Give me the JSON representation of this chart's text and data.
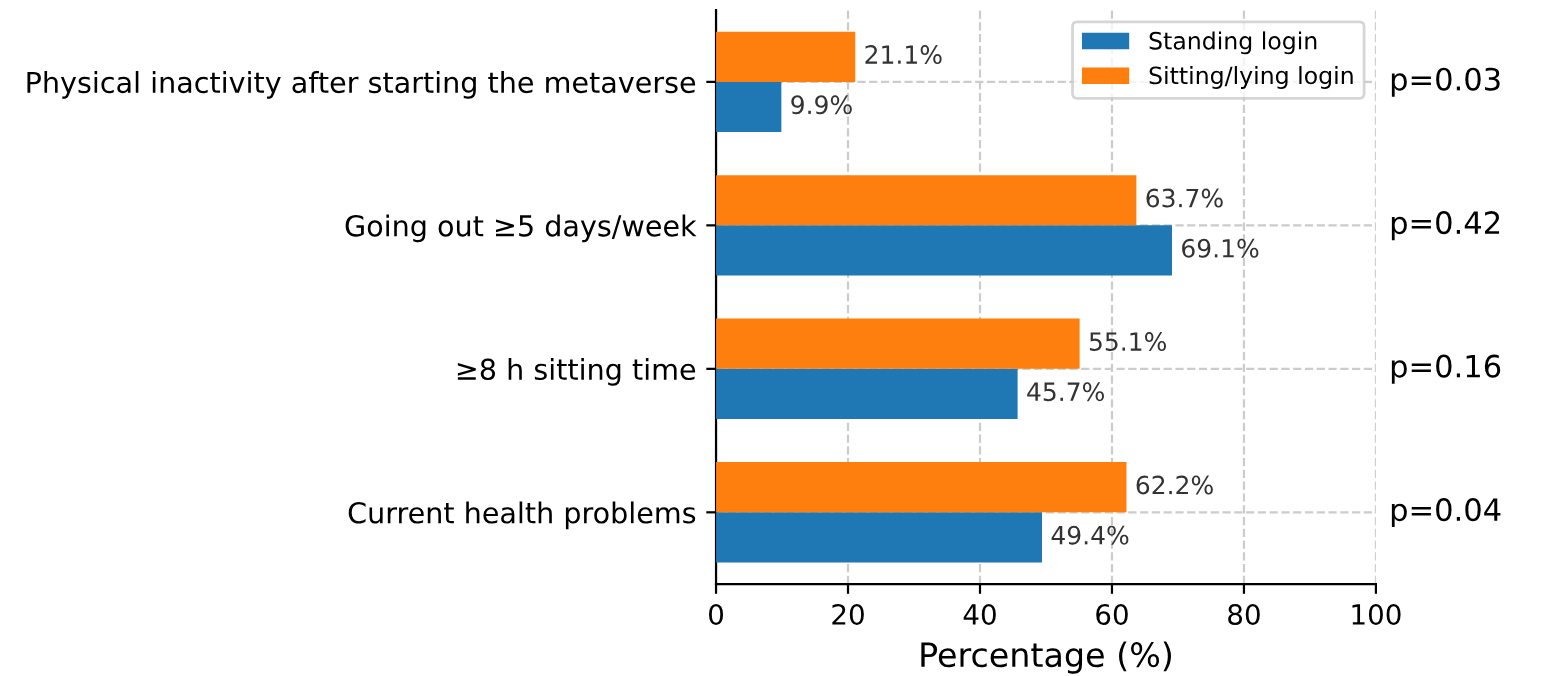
{
  "chart_data": {
    "type": "bar",
    "orientation": "horizontal",
    "xlabel": "Percentage (%)",
    "categories": [
      "Physical inactivity after starting the metaverse",
      "Going out ≥5 days/week",
      "≥8 h sitting time",
      "Current health problems"
    ],
    "series": [
      {
        "name": "Standing login",
        "color": "#1f77b4",
        "values": [
          9.9,
          69.1,
          45.7,
          49.4
        ],
        "value_labels": [
          "9.9%",
          "69.1%",
          "45.7%",
          "49.4%"
        ]
      },
      {
        "name": "Sitting/lying login",
        "color": "#ff7f0e",
        "values": [
          21.1,
          63.7,
          55.1,
          62.2
        ],
        "value_labels": [
          "21.1%",
          "63.7%",
          "55.1%",
          "62.2%"
        ]
      }
    ],
    "xlim": [
      0,
      100
    ],
    "xticks": [
      0,
      20,
      40,
      60,
      80,
      100
    ],
    "grid": true,
    "legend": "top right",
    "annotations": [
      "p=0.03",
      "p=0.42",
      "p=0.16",
      "p=0.04"
    ]
  }
}
